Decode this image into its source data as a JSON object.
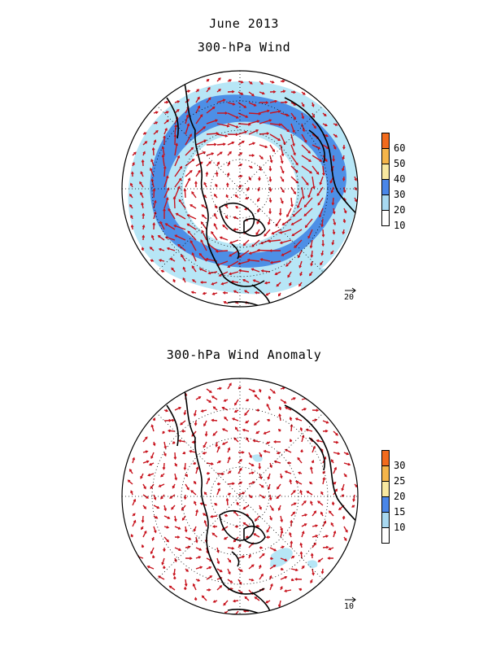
{
  "figure": {
    "title": "June 2013",
    "top_panel_title": "300-hPa Wind",
    "bottom_panel_title": "300-hPa Wind Anomaly"
  },
  "top_panel": {
    "projection": "north-polar-stereographic",
    "colorbar": {
      "labels": [
        "60",
        "50",
        "40",
        "30",
        "20",
        "10"
      ],
      "colors": [
        "#f26b1d",
        "#f5b54a",
        "#f8e8a0",
        "#4a86e8",
        "#a8d8f0",
        "#ffffff"
      ]
    },
    "reference_vector": "20",
    "shading_levels": {
      "light": "#b7e6f6",
      "medium": "#4d8fe6"
    }
  },
  "bottom_panel": {
    "projection": "north-polar-stereographic",
    "colorbar": {
      "labels": [
        "30",
        "25",
        "20",
        "15",
        "10"
      ],
      "colors": [
        "#f26b1d",
        "#f5b54a",
        "#f8e8a0",
        "#4a86e8",
        "#a8d8f0",
        "#ffffff"
      ]
    },
    "reference_vector": "10",
    "shading_levels": {
      "light": "#b7e6f6"
    }
  },
  "colors": {
    "vector": "#c8141e",
    "coast": "#000000",
    "grid": "#000000"
  }
}
